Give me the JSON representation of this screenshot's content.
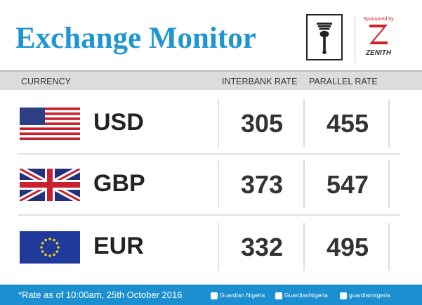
{
  "header": {
    "title": "Exchange Monitor",
    "sponsor_label": "Sponsored by",
    "sponsor_name": "ZENITH"
  },
  "table": {
    "columns": [
      "CURRENCY",
      "INTERBANK RATE",
      "PARALLEL RATE"
    ],
    "rows": [
      [
        "USD",
        305,
        455
      ],
      [
        "GBP",
        373,
        547
      ],
      [
        "EUR",
        332,
        495
      ]
    ]
  },
  "footer": {
    "note": "*Rate as of 10:00am, 25th October 2016",
    "facebook": "Guardian Nigeria",
    "twitter": "GuardianNigeria",
    "instagram": "guardiannigeria"
  }
}
